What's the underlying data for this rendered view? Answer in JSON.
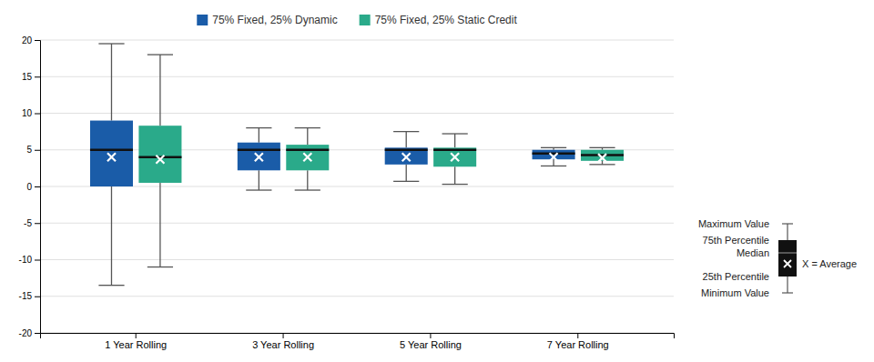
{
  "chart_data": {
    "type": "box",
    "categories": [
      "1 Year Rolling",
      "3 Year Rolling",
      "5 Year Rolling",
      "7 Year Rolling"
    ],
    "series": [
      {
        "name": "75% Fixed, 25% Dynamic",
        "color": "#1a5ca8",
        "whisker_min": [
          -13.5,
          -0.5,
          0.7,
          2.8
        ],
        "q1": [
          0.0,
          2.2,
          3.0,
          3.7
        ],
        "median": [
          5.0,
          5.0,
          5.0,
          4.5
        ],
        "q3": [
          9.0,
          6.0,
          5.3,
          5.0
        ],
        "whisker_max": [
          19.5,
          8.0,
          7.5,
          5.3
        ],
        "mean": [
          4.0,
          4.0,
          4.0,
          4.0
        ]
      },
      {
        "name": "75% Fixed, 25% Static Credit",
        "color": "#2aaa8a",
        "whisker_min": [
          -11.0,
          -0.5,
          0.3,
          3.0
        ],
        "q1": [
          0.5,
          2.2,
          2.7,
          3.5
        ],
        "median": [
          4.0,
          5.0,
          5.0,
          4.3
        ],
        "q3": [
          8.3,
          5.7,
          5.3,
          5.0
        ],
        "whisker_max": [
          18.0,
          8.0,
          7.2,
          5.3
        ],
        "mean": [
          3.7,
          4.0,
          4.0,
          3.9
        ]
      }
    ],
    "ylim": [
      -20,
      20
    ],
    "yticks": [
      -20,
      -15,
      -10,
      -5,
      0,
      5,
      10,
      15,
      20
    ],
    "grid": true,
    "legend": "top",
    "annotations": [
      "Maximum Value",
      "75th Percentile",
      "Median",
      "25th Percentile",
      "Minimum Value",
      "X = Average"
    ]
  }
}
